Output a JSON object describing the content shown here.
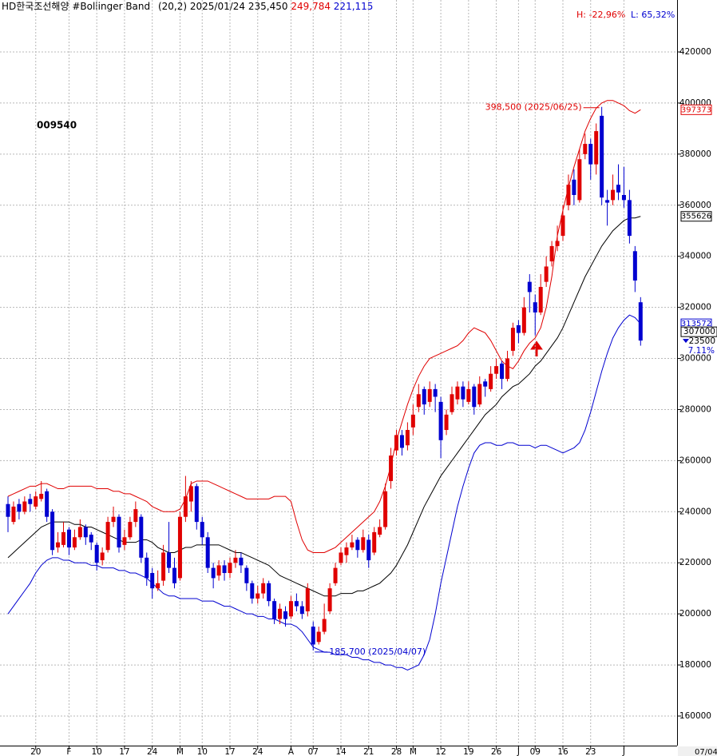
{
  "chart_data": {
    "type": "candlestick",
    "header": {
      "name": "HD한국조선해양",
      "indicator": "#Bollinger Band",
      "params": "(20,2)",
      "date": "2025/01/24",
      "close": "235,450",
      "upper": "249,784",
      "lower": "221,115"
    },
    "high_change": "H: -22,96%",
    "low_change": "L: 65,32%",
    "code": "009540",
    "date_label": "07/04",
    "up_color": "#e00000",
    "down_color": "#0000d0",
    "categories": [
      null,
      null,
      null,
      null,
      null,
      "20",
      null,
      null,
      null,
      null,
      null,
      "F",
      null,
      null,
      null,
      null,
      "10",
      null,
      null,
      null,
      null,
      "17",
      null,
      null,
      null,
      null,
      "24",
      null,
      null,
      null,
      null,
      "M",
      null,
      null,
      null,
      "10",
      null,
      null,
      null,
      null,
      "17",
      null,
      null,
      null,
      null,
      "24",
      null,
      null,
      null,
      null,
      null,
      "A",
      null,
      null,
      null,
      "07",
      null,
      null,
      null,
      null,
      "14",
      null,
      null,
      null,
      null,
      "21",
      null,
      null,
      null,
      null,
      "28",
      null,
      null,
      "M",
      null,
      null,
      null,
      null,
      "12",
      null,
      null,
      null,
      null,
      "19",
      null,
      null,
      null,
      null,
      "26",
      null,
      null,
      null,
      "J",
      null,
      null,
      "09",
      null,
      null,
      null,
      null,
      "16",
      null,
      null,
      null,
      null,
      "23",
      null,
      null,
      null,
      null,
      null,
      "J",
      null,
      null,
      null
    ],
    "open": [
      243000,
      236000,
      243000,
      240000,
      245000,
      242000,
      245000,
      248000,
      240000,
      226000,
      227000,
      233000,
      226000,
      230000,
      234000,
      231000,
      227000,
      221000,
      225000,
      236000,
      238000,
      227000,
      230000,
      236000,
      238000,
      222000,
      216000,
      210000,
      213000,
      224000,
      218000,
      214000,
      238000,
      244000,
      250000,
      236000,
      230000,
      218000,
      215000,
      219000,
      216000,
      220000,
      222000,
      218000,
      212000,
      206000,
      208000,
      212000,
      205000,
      198000,
      201000,
      199000,
      205000,
      203000,
      201000,
      195000,
      189000,
      193000,
      201000,
      212000,
      220000,
      223000,
      226000,
      229000,
      225000,
      229000,
      224000,
      231000,
      234000,
      252000,
      264000,
      270000,
      266000,
      273000,
      281000,
      288000,
      283000,
      288000,
      283000,
      272000,
      279000,
      284000,
      289000,
      283000,
      289000,
      282000,
      291000,
      288000,
      294000,
      298000,
      292000,
      303000,
      313000,
      310000,
      330000,
      322000,
      318000,
      330000,
      338000,
      344000,
      348000,
      360000,
      370000,
      362000,
      380000,
      384000,
      376000,
      395000,
      362000,
      362000,
      368000,
      364000,
      362000,
      342000,
      322000
    ],
    "high": [
      246000,
      244000,
      245000,
      246000,
      247000,
      248000,
      252000,
      249000,
      241000,
      232000,
      236000,
      234000,
      233000,
      237000,
      235000,
      232000,
      228000,
      226000,
      238000,
      242000,
      239000,
      233000,
      238000,
      244000,
      239000,
      224000,
      218000,
      217000,
      227000,
      236000,
      222000,
      240000,
      254000,
      252000,
      251000,
      238000,
      232000,
      220000,
      221000,
      221000,
      222000,
      225000,
      224000,
      219000,
      213000,
      211000,
      214000,
      213000,
      206000,
      204000,
      203000,
      207000,
      208000,
      205000,
      212000,
      197000,
      195000,
      204000,
      212000,
      220000,
      226000,
      228000,
      231000,
      230000,
      233000,
      231000,
      234000,
      237000,
      251000,
      265000,
      272000,
      272000,
      275000,
      282000,
      290000,
      289000,
      291000,
      290000,
      285000,
      280000,
      289000,
      291000,
      291000,
      291000,
      290000,
      293000,
      292000,
      297000,
      300000,
      299000,
      303000,
      314000,
      315000,
      324000,
      333000,
      325000,
      333000,
      340000,
      346000,
      352000,
      360000,
      372000,
      374000,
      382000,
      388000,
      386000,
      392000,
      398500,
      366000,
      372000,
      376000,
      375000,
      366000,
      344000,
      324000
    ],
    "low": [
      232000,
      235000,
      237000,
      239000,
      240000,
      241000,
      244000,
      236000,
      223000,
      224000,
      226000,
      223000,
      225000,
      229000,
      227000,
      225000,
      217000,
      219000,
      224000,
      234000,
      224000,
      225000,
      229000,
      234000,
      220000,
      211000,
      206000,
      209000,
      211000,
      216000,
      210000,
      213000,
      236000,
      240000,
      233000,
      227000,
      216000,
      210000,
      213000,
      213000,
      214000,
      218000,
      216000,
      209000,
      204000,
      204000,
      206000,
      203000,
      196000,
      196000,
      195000,
      198000,
      201000,
      198000,
      199000,
      185700,
      188000,
      192000,
      200000,
      211000,
      219000,
      220000,
      225000,
      222000,
      224000,
      218000,
      223000,
      230000,
      233000,
      249000,
      262000,
      262000,
      264000,
      270000,
      279000,
      278000,
      281000,
      279000,
      261000,
      270000,
      278000,
      282000,
      281000,
      282000,
      278000,
      281000,
      285000,
      287000,
      292000,
      288000,
      291000,
      301000,
      306000,
      309000,
      318000,
      309000,
      317000,
      328000,
      336000,
      342000,
      346000,
      358000,
      360000,
      361000,
      378000,
      370000,
      372000,
      360000,
      352000,
      360000,
      362000,
      359000,
      345000,
      326000,
      305000
    ],
    "close": [
      238000,
      242000,
      240000,
      244000,
      243000,
      246000,
      247000,
      238000,
      225000,
      228000,
      232000,
      226000,
      230000,
      234000,
      230000,
      228000,
      220000,
      224000,
      236000,
      238000,
      226000,
      230000,
      236000,
      241000,
      222000,
      214000,
      210000,
      212000,
      224000,
      218000,
      212000,
      238000,
      246000,
      250000,
      236000,
      230000,
      218000,
      214000,
      219000,
      216000,
      220000,
      222000,
      219000,
      212000,
      206000,
      208000,
      212000,
      205000,
      198000,
      202000,
      198000,
      205000,
      203000,
      200000,
      210000,
      188000,
      193000,
      198000,
      210000,
      218000,
      224000,
      226000,
      228000,
      225000,
      230000,
      221000,
      232000,
      234000,
      248000,
      262000,
      270000,
      265000,
      272000,
      278000,
      286000,
      282000,
      288000,
      285000,
      268000,
      278000,
      286000,
      289000,
      284000,
      288000,
      281000,
      290000,
      289000,
      294000,
      297000,
      292000,
      300000,
      312000,
      310000,
      320000,
      326000,
      318000,
      328000,
      336000,
      344000,
      346000,
      356000,
      368000,
      364000,
      378000,
      384000,
      376000,
      389000,
      363000,
      361000,
      366000,
      365000,
      362000,
      348000,
      330500,
      307000
    ],
    "bands": [
      {
        "color": "#e00000",
        "values": [
          246000,
          247000,
          248000,
          249000,
          250000,
          250000,
          251000,
          251000,
          250000,
          249000,
          249000,
          250000,
          250000,
          250000,
          250000,
          250000,
          249000,
          249000,
          249000,
          248000,
          248000,
          247000,
          247000,
          246000,
          245000,
          244000,
          242000,
          241000,
          240000,
          240000,
          240000,
          241000,
          245000,
          251000,
          252000,
          252000,
          252000,
          251000,
          250000,
          249000,
          248000,
          247000,
          246000,
          245000,
          245000,
          245000,
          245000,
          245000,
          246000,
          246000,
          246000,
          244000,
          236000,
          229000,
          225000,
          224000,
          224000,
          224000,
          225000,
          226000,
          228000,
          230000,
          232000,
          234000,
          236000,
          238000,
          240000,
          244000,
          250000,
          258000,
          268000,
          275000,
          282000,
          288000,
          293000,
          297000,
          300000,
          301000,
          302000,
          303000,
          304000,
          305000,
          307000,
          310000,
          312000,
          311000,
          310000,
          307000,
          303000,
          299000,
          297000,
          296000,
          299000,
          303000,
          306000,
          308000,
          312000,
          320000,
          332000,
          348000,
          358000,
          367000,
          375000,
          382000,
          389000,
          394000,
          398000,
          400000,
          401000,
          401000,
          400000,
          399000,
          397000,
          396000,
          397373
        ]
      },
      {
        "color": "#000000",
        "values": [
          222000,
          224000,
          226000,
          228000,
          230000,
          232000,
          234000,
          235000,
          236000,
          236000,
          236000,
          236000,
          235000,
          235000,
          234000,
          234000,
          233000,
          232000,
          231000,
          230000,
          229000,
          228000,
          228000,
          228000,
          229000,
          229000,
          228000,
          226000,
          225000,
          224000,
          224000,
          225000,
          226000,
          226000,
          227000,
          227000,
          227000,
          227000,
          227000,
          226000,
          225000,
          224000,
          224000,
          223000,
          222000,
          221000,
          220000,
          219000,
          217000,
          215000,
          214000,
          213000,
          212000,
          211000,
          210000,
          209000,
          208000,
          207000,
          207000,
          207000,
          208000,
          208000,
          208000,
          209000,
          209000,
          210000,
          211000,
          212000,
          214000,
          216000,
          219000,
          223000,
          227000,
          232000,
          237000,
          242000,
          246000,
          250000,
          254000,
          257000,
          260000,
          263000,
          266000,
          269000,
          272000,
          275000,
          278000,
          280000,
          282000,
          285000,
          287000,
          289000,
          290000,
          292000,
          294000,
          297000,
          299000,
          302000,
          305000,
          308000,
          312000,
          317000,
          322000,
          327000,
          332000,
          336000,
          340000,
          344000,
          347000,
          350000,
          352000,
          354000,
          355000,
          355000,
          355626
        ]
      },
      {
        "color": "#0000d0",
        "values": [
          200000,
          203000,
          206000,
          209000,
          212000,
          216000,
          219000,
          221000,
          222000,
          222000,
          221000,
          221000,
          220000,
          220000,
          220000,
          219000,
          219000,
          218000,
          218000,
          218000,
          217000,
          217000,
          216000,
          216000,
          215000,
          214000,
          212000,
          210000,
          208000,
          207000,
          207000,
          206000,
          206000,
          206000,
          206000,
          205000,
          205000,
          205000,
          204000,
          203000,
          203000,
          202000,
          201000,
          200000,
          200000,
          199000,
          199000,
          198000,
          198000,
          197000,
          196000,
          196000,
          195000,
          193000,
          190000,
          187000,
          186000,
          185000,
          185000,
          184000,
          184000,
          184000,
          183000,
          183000,
          182000,
          182000,
          181000,
          181000,
          180000,
          180000,
          179000,
          179000,
          178000,
          179000,
          180000,
          184000,
          190000,
          200000,
          212000,
          222000,
          232000,
          242000,
          250000,
          257000,
          263000,
          266000,
          267000,
          267000,
          266000,
          266000,
          267000,
          267000,
          266000,
          266000,
          266000,
          265000,
          266000,
          266000,
          265000,
          264000,
          263000,
          264000,
          265000,
          267000,
          272000,
          279000,
          287000,
          295000,
          302000,
          308000,
          312000,
          315000,
          317000,
          316000,
          313572
        ]
      }
    ],
    "annotations": {
      "high": "398,500 (2025/06/25)",
      "low": "185,700 (2025/04/07)"
    },
    "change": 23500,
    "change_pct": "7.11%",
    "ylim": [
      155000,
      435000
    ],
    "yticks": [
      160000,
      180000,
      200000,
      220000,
      240000,
      260000,
      280000,
      300000,
      320000,
      340000,
      360000,
      380000,
      400000,
      420000
    ],
    "grid": true
  }
}
